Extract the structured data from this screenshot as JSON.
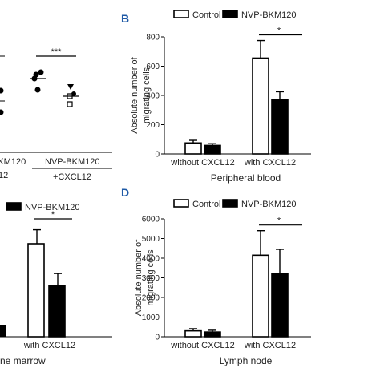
{
  "chart_data": [
    {
      "panel": "",
      "type": "scatter",
      "series_labels": [
        "NVP-BKM120"
      ],
      "x_labels": [
        "+CXCL12"
      ],
      "tick_partial_labels": [
        "12"
      ],
      "annotations": [
        "***"
      ],
      "points": {
        "left_column_partial": [
          {
            "marker": "circle"
          },
          {
            "marker": "circle"
          }
        ],
        "group_filled": [
          {
            "marker": "circle"
          },
          {
            "marker": "circle"
          },
          {
            "marker": "circle"
          },
          {
            "marker": "circle"
          }
        ],
        "group_open": [
          {
            "marker": "triangle"
          },
          {
            "marker": "circle"
          },
          {
            "marker": "square"
          },
          {
            "marker": "square"
          }
        ]
      }
    },
    {
      "panel": "B",
      "type": "bar",
      "title": "Peripheral blood",
      "ylabel_lines": [
        "Absolute number of",
        "migrating cells"
      ],
      "ylim": [
        0,
        800
      ],
      "yticks": [
        0,
        200,
        400,
        600,
        800
      ],
      "categories": [
        "without CXCL12",
        "with CXCL12"
      ],
      "series": [
        {
          "name": "Control",
          "color": "#ffffff",
          "values": [
            75,
            655
          ],
          "errors": [
            18,
            120
          ]
        },
        {
          "name": "NVP-BKM120",
          "color": "#000000",
          "values": [
            58,
            370
          ],
          "errors": [
            12,
            55
          ]
        }
      ],
      "annotation": "*"
    },
    {
      "panel": "",
      "type": "bar",
      "title": "ne marrow",
      "legend": [
        "NVP-BKM120"
      ],
      "categories": [
        "with CXCL12"
      ],
      "annotation": "*",
      "series": [
        {
          "name": "Control",
          "color": "#ffffff",
          "values": [
            100
          ],
          "errors": [
            15
          ]
        },
        {
          "name": "NVP-BKM120",
          "color": "#000000",
          "values": [
            55
          ],
          "errors": [
            13
          ]
        }
      ]
    },
    {
      "panel": "D",
      "type": "bar",
      "title": "Lymph node",
      "ylabel_lines": [
        "Absolute number of",
        "migrating cells"
      ],
      "ylim": [
        0,
        6000
      ],
      "yticks": [
        0,
        1000,
        2000,
        3000,
        4000,
        5000,
        6000
      ],
      "categories": [
        "without CXCL12",
        "with CXCL12"
      ],
      "series": [
        {
          "name": "Control",
          "color": "#ffffff",
          "values": [
            300,
            4150
          ],
          "errors": [
            110,
            1250
          ]
        },
        {
          "name": "NVP-BKM120",
          "color": "#000000",
          "values": [
            240,
            3200
          ],
          "errors": [
            90,
            1250
          ]
        }
      ],
      "annotation": "*"
    }
  ]
}
